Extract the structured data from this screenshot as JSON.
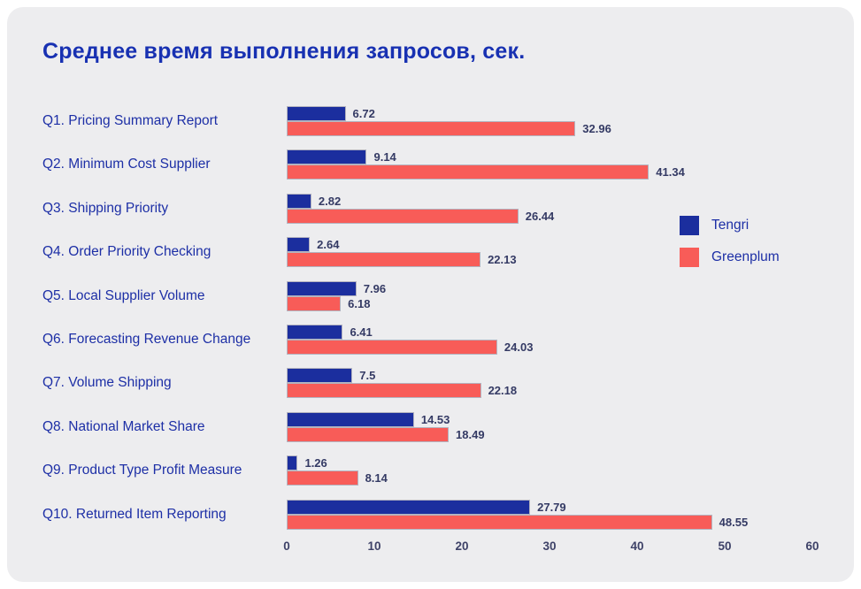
{
  "title": "Среднее время выполнения запросов, сек.",
  "legend": {
    "items": [
      {
        "label": "Tengri",
        "color": "#1b2e9e"
      },
      {
        "label": "Greenplum",
        "color": "#f85c58"
      }
    ]
  },
  "colors": {
    "card_background": "#ededef",
    "tengri_bar": "#1b2e9e",
    "greenplum_bar": "#f85c58",
    "title_text": "#1831b2",
    "category_text": "#1d2fa6",
    "value_text": "#343a64",
    "axis_text": "#3e4268",
    "bar_border": "#b3b3bf"
  },
  "chart_data": {
    "type": "bar",
    "orientation": "horizontal",
    "title": "Среднее время выполнения запросов, сек.",
    "categories": [
      "Q1. Pricing Summary Report",
      "Q2. Minimum Cost Supplier",
      "Q3. Shipping Priority",
      "Q4. Order Priority Checking",
      "Q5. Local Supplier Volume",
      "Q6. Forecasting Revenue Change",
      "Q7. Volume Shipping",
      "Q8. National Market Share",
      "Q9. Product Type Profit Measure",
      "Q10. Returned Item Reporting"
    ],
    "series": [
      {
        "name": "Tengri",
        "color": "#1b2e9e",
        "values": [
          6.72,
          9.14,
          2.82,
          2.64,
          7.96,
          6.41,
          7.5,
          14.53,
          1.26,
          27.79
        ]
      },
      {
        "name": "Greenplum",
        "color": "#f85c58",
        "values": [
          32.96,
          41.34,
          26.44,
          22.13,
          6.18,
          24.03,
          22.18,
          18.49,
          8.14,
          48.55
        ]
      }
    ],
    "xlabel": "",
    "ylabel": "",
    "xlim": [
      0,
      60
    ],
    "x_ticks": [
      0,
      10,
      20,
      30,
      40,
      50,
      60
    ],
    "grid": false,
    "legend_position": "right",
    "value_labels": true
  }
}
